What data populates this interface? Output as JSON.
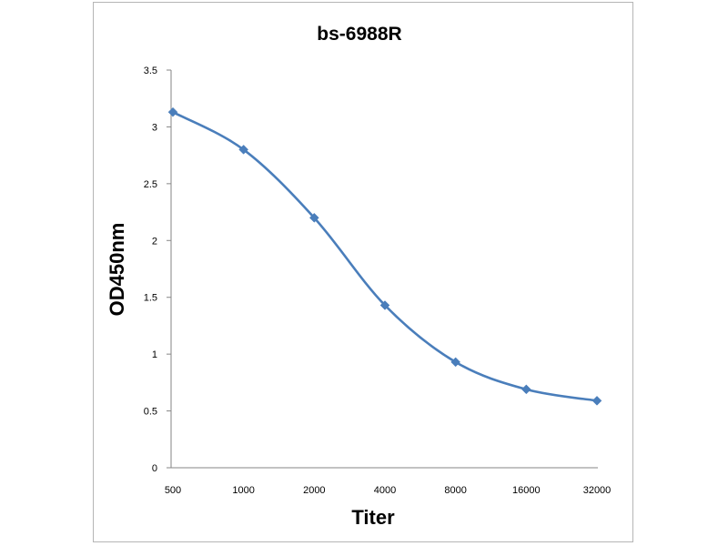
{
  "chart_data": {
    "type": "line",
    "title": "bs-6988R",
    "xlabel": "Titer",
    "ylabel": "OD450nm",
    "categories": [
      "500",
      "1000",
      "2000",
      "4000",
      "8000",
      "16000",
      "32000"
    ],
    "series": [
      {
        "values": [
          3.13,
          2.8,
          2.2,
          1.43,
          0.93,
          0.69,
          0.59
        ],
        "color": "#4a7ebb",
        "marker": "diamond"
      }
    ],
    "ylim": [
      0,
      3.5
    ],
    "yticks": [
      "0",
      "0.5",
      "1",
      "1.5",
      "2",
      "2.5",
      "3",
      "3.5"
    ],
    "grid": false,
    "legend": "none",
    "smooth": true
  }
}
